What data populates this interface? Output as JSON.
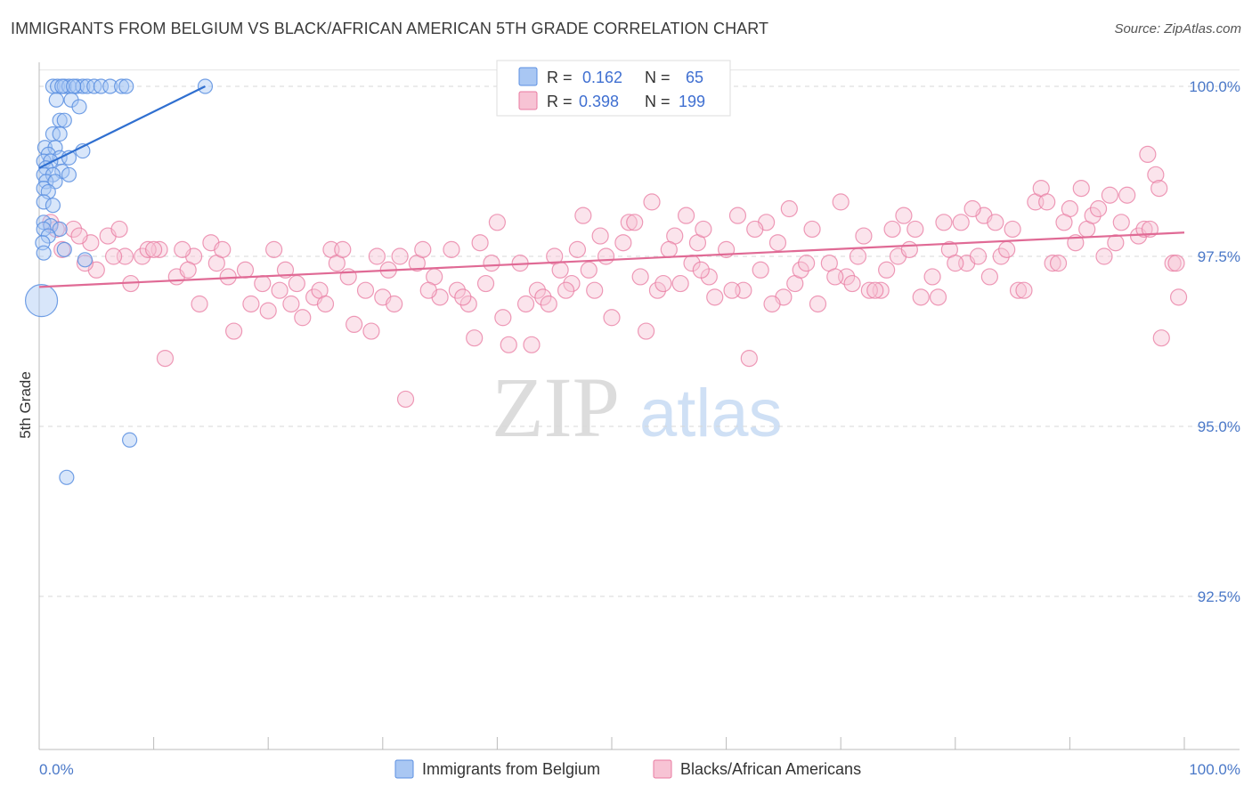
{
  "title": "IMMIGRANTS FROM BELGIUM VS BLACK/AFRICAN AMERICAN 5TH GRADE CORRELATION CHART",
  "source": "Source: ZipAtlas.com",
  "watermark": {
    "zip": "ZIP",
    "atlas": "atlas"
  },
  "colors": {
    "blue": "#5b8fe0",
    "blue_fill": "#a9c7f3",
    "blue_line": "#2f6fd0",
    "pink": "#e87aa0",
    "pink_fill": "#f7c3d4",
    "pink_line": "#e06a95",
    "grid": "#d7d7d7",
    "axis_text": "#4a78c8"
  },
  "legend_box": {
    "rows": [
      {
        "r_label": "R =",
        "r_value": "0.162",
        "n_label": "N =",
        "n_value": "65"
      },
      {
        "r_label": "R =",
        "r_value": "0.398",
        "n_label": "N =",
        "n_value": "199"
      }
    ]
  },
  "chart_data": {
    "type": "scatter",
    "title": "IMMIGRANTS FROM BELGIUM VS BLACK/AFRICAN AMERICAN 5TH GRADE CORRELATION CHART",
    "xlabel": "",
    "ylabel": "5th Grade",
    "x_tick_labels": [
      "0.0%",
      "100.0%"
    ],
    "y_tick_labels": [
      "100.0%",
      "97.5%",
      "95.0%",
      "92.5%"
    ],
    "y_ticks": [
      100.0,
      97.5,
      95.0,
      92.5
    ],
    "xlim": [
      0,
      100
    ],
    "ylim": [
      90.0,
      100.4
    ],
    "legend_position": "bottom-center",
    "series": [
      {
        "name": "Immigrants from Belgium",
        "color": "#5b8fe0",
        "r": 0.162,
        "n": 65,
        "trend": {
          "x": [
            0,
            14.5
          ],
          "y": [
            98.8,
            100.0
          ]
        },
        "points": [
          [
            1.2,
            100.0
          ],
          [
            1.6,
            100.0
          ],
          [
            2.2,
            100.0
          ],
          [
            2.6,
            100.0
          ],
          [
            3.3,
            100.0
          ],
          [
            3.8,
            100.0
          ],
          [
            4.2,
            100.0
          ],
          [
            4.8,
            100.0
          ],
          [
            5.4,
            100.0
          ],
          [
            6.2,
            100.0
          ],
          [
            7.2,
            100.0
          ],
          [
            7.6,
            100.0
          ],
          [
            14.5,
            100.0
          ],
          [
            2.0,
            100.0
          ],
          [
            3.0,
            100.0
          ],
          [
            1.5,
            99.8
          ],
          [
            2.8,
            99.8
          ],
          [
            3.5,
            99.7
          ],
          [
            1.8,
            99.5
          ],
          [
            2.2,
            99.5
          ],
          [
            1.2,
            99.3
          ],
          [
            1.8,
            99.3
          ],
          [
            0.5,
            99.1
          ],
          [
            1.4,
            99.1
          ],
          [
            0.8,
            99.0
          ],
          [
            3.8,
            99.05
          ],
          [
            1.8,
            98.95
          ],
          [
            2.6,
            98.95
          ],
          [
            0.4,
            98.9
          ],
          [
            1.0,
            98.9
          ],
          [
            0.6,
            98.8
          ],
          [
            2.0,
            98.75
          ],
          [
            0.4,
            98.7
          ],
          [
            1.2,
            98.7
          ],
          [
            2.6,
            98.7
          ],
          [
            0.6,
            98.6
          ],
          [
            1.4,
            98.6
          ],
          [
            0.4,
            98.5
          ],
          [
            0.8,
            98.45
          ],
          [
            0.4,
            98.3
          ],
          [
            1.2,
            98.25
          ],
          [
            0.4,
            98.0
          ],
          [
            1.0,
            97.95
          ],
          [
            1.8,
            97.9
          ],
          [
            0.4,
            97.9
          ],
          [
            0.8,
            97.8
          ],
          [
            0.3,
            97.7
          ],
          [
            2.2,
            97.6
          ],
          [
            0.4,
            97.55
          ],
          [
            4.0,
            97.45
          ],
          [
            0.2,
            96.85
          ],
          [
            7.9,
            94.8
          ],
          [
            2.4,
            94.25
          ]
        ]
      },
      {
        "name": "Blacks/African Americans",
        "color": "#e87aa0",
        "r": 0.398,
        "n": 199,
        "trend": {
          "x": [
            0,
            100
          ],
          "y": [
            97.05,
            97.85
          ]
        },
        "points": [
          [
            1.5,
            97.9
          ],
          [
            3.0,
            97.9
          ],
          [
            4.5,
            97.7
          ],
          [
            6.0,
            97.8
          ],
          [
            7.5,
            97.5
          ],
          [
            9.0,
            97.5
          ],
          [
            10.5,
            97.6
          ],
          [
            12.0,
            97.2
          ],
          [
            13.5,
            97.5
          ],
          [
            15.0,
            97.7
          ],
          [
            16.5,
            97.2
          ],
          [
            18.0,
            97.3
          ],
          [
            19.5,
            97.1
          ],
          [
            21.0,
            97.0
          ],
          [
            22.5,
            97.1
          ],
          [
            24.0,
            96.9
          ],
          [
            25.5,
            97.6
          ],
          [
            27.0,
            97.2
          ],
          [
            28.5,
            97.0
          ],
          [
            30.0,
            96.9
          ],
          [
            31.5,
            97.5
          ],
          [
            33.0,
            97.4
          ],
          [
            34.5,
            97.2
          ],
          [
            36.0,
            97.6
          ],
          [
            37.5,
            96.8
          ],
          [
            39.0,
            97.1
          ],
          [
            40.5,
            96.6
          ],
          [
            42.0,
            97.4
          ],
          [
            43.5,
            97.0
          ],
          [
            45.0,
            97.5
          ],
          [
            46.5,
            97.1
          ],
          [
            48.0,
            97.3
          ],
          [
            49.5,
            97.5
          ],
          [
            51.0,
            97.7
          ],
          [
            52.5,
            97.2
          ],
          [
            54.0,
            97.0
          ],
          [
            55.5,
            97.8
          ],
          [
            57.0,
            97.4
          ],
          [
            58.5,
            97.2
          ],
          [
            60.0,
            97.6
          ],
          [
            61.5,
            97.0
          ],
          [
            63.0,
            97.3
          ],
          [
            64.5,
            97.7
          ],
          [
            66.0,
            97.1
          ],
          [
            67.5,
            97.9
          ],
          [
            69.0,
            97.4
          ],
          [
            70.5,
            97.2
          ],
          [
            72.0,
            97.8
          ],
          [
            73.5,
            97.0
          ],
          [
            75.0,
            97.5
          ],
          [
            76.5,
            97.9
          ],
          [
            78.0,
            97.2
          ],
          [
            79.5,
            97.6
          ],
          [
            81.0,
            97.4
          ],
          [
            82.5,
            98.1
          ],
          [
            84.0,
            97.5
          ],
          [
            85.5,
            97.0
          ],
          [
            87.0,
            98.3
          ],
          [
            88.5,
            97.4
          ],
          [
            90.0,
            98.2
          ],
          [
            91.5,
            97.9
          ],
          [
            93.0,
            97.5
          ],
          [
            94.5,
            98.0
          ],
          [
            96.0,
            97.8
          ],
          [
            97.5,
            98.7
          ],
          [
            99.0,
            97.4
          ],
          [
            2.0,
            97.6
          ],
          [
            5.0,
            97.3
          ],
          [
            8.0,
            97.1
          ],
          [
            11.0,
            96.0
          ],
          [
            14.0,
            96.8
          ],
          [
            17.0,
            96.4
          ],
          [
            20.0,
            96.7
          ],
          [
            23.0,
            96.6
          ],
          [
            26.0,
            97.4
          ],
          [
            29.0,
            96.4
          ],
          [
            32.0,
            95.4
          ],
          [
            35.0,
            96.9
          ],
          [
            38.0,
            96.3
          ],
          [
            41.0,
            96.2
          ],
          [
            44.0,
            96.9
          ],
          [
            47.0,
            97.6
          ],
          [
            50.0,
            96.6
          ],
          [
            53.0,
            96.4
          ],
          [
            56.0,
            97.1
          ],
          [
            59.0,
            96.9
          ],
          [
            62.0,
            96.0
          ],
          [
            65.0,
            96.9
          ],
          [
            68.0,
            96.8
          ],
          [
            71.0,
            97.1
          ],
          [
            74.0,
            97.3
          ],
          [
            77.0,
            96.9
          ],
          [
            80.0,
            97.4
          ],
          [
            83.0,
            97.2
          ],
          [
            86.0,
            97.0
          ],
          [
            89.0,
            97.4
          ],
          [
            92.0,
            98.1
          ],
          [
            95.0,
            98.4
          ],
          [
            98.0,
            96.3
          ],
          [
            99.5,
            96.9
          ],
          [
            12.5,
            97.6
          ],
          [
            18.5,
            96.8
          ],
          [
            24.5,
            97.0
          ],
          [
            30.5,
            97.3
          ],
          [
            36.5,
            97.0
          ],
          [
            42.5,
            96.8
          ],
          [
            48.5,
            97.0
          ],
          [
            54.5,
            97.1
          ],
          [
            60.5,
            97.0
          ],
          [
            66.5,
            97.3
          ],
          [
            72.5,
            97.0
          ],
          [
            78.5,
            96.9
          ],
          [
            84.5,
            97.6
          ],
          [
            90.5,
            97.7
          ],
          [
            96.5,
            97.9
          ],
          [
            21.5,
            97.3
          ],
          [
            27.5,
            96.5
          ],
          [
            33.5,
            97.6
          ],
          [
            39.5,
            97.4
          ],
          [
            45.5,
            97.3
          ],
          [
            51.5,
            98.0
          ],
          [
            57.5,
            97.7
          ],
          [
            63.5,
            98.0
          ],
          [
            69.5,
            97.2
          ],
          [
            75.5,
            98.1
          ],
          [
            81.5,
            98.2
          ],
          [
            87.5,
            98.5
          ],
          [
            93.5,
            98.4
          ],
          [
            6.5,
            97.5
          ],
          [
            9.5,
            97.6
          ],
          [
            15.5,
            97.4
          ],
          [
            25.0,
            96.8
          ],
          [
            34.0,
            97.0
          ],
          [
            43.0,
            96.2
          ],
          [
            52.0,
            98.0
          ],
          [
            61.0,
            98.1
          ],
          [
            70.0,
            98.3
          ],
          [
            79.0,
            98.0
          ],
          [
            88.0,
            98.3
          ],
          [
            97.0,
            97.9
          ],
          [
            10.0,
            97.6
          ],
          [
            20.5,
            97.6
          ],
          [
            29.5,
            97.5
          ],
          [
            38.5,
            97.7
          ],
          [
            47.5,
            98.1
          ],
          [
            56.5,
            98.1
          ],
          [
            65.5,
            98.2
          ],
          [
            74.5,
            97.9
          ],
          [
            83.5,
            98.0
          ],
          [
            92.5,
            98.2
          ],
          [
            4.0,
            97.4
          ],
          [
            13.0,
            97.3
          ],
          [
            22.0,
            96.8
          ],
          [
            31.0,
            96.8
          ],
          [
            40.0,
            98.0
          ],
          [
            49.0,
            97.8
          ],
          [
            58.0,
            97.9
          ],
          [
            67.0,
            97.4
          ],
          [
            76.0,
            97.6
          ],
          [
            85.0,
            97.9
          ],
          [
            94.0,
            97.7
          ],
          [
            1.0,
            98.0
          ],
          [
            3.5,
            97.8
          ],
          [
            7.0,
            97.9
          ],
          [
            16.0,
            97.6
          ],
          [
            26.5,
            97.6
          ],
          [
            37.0,
            96.9
          ],
          [
            46.0,
            97.0
          ],
          [
            55.0,
            97.6
          ],
          [
            64.0,
            96.8
          ],
          [
            73.0,
            97.0
          ],
          [
            82.0,
            97.5
          ],
          [
            91.0,
            98.5
          ],
          [
            97.8,
            98.5
          ],
          [
            99.3,
            97.4
          ],
          [
            44.5,
            96.8
          ],
          [
            53.5,
            98.3
          ],
          [
            62.5,
            97.9
          ],
          [
            71.5,
            97.5
          ],
          [
            80.5,
            98.0
          ],
          [
            89.5,
            98.0
          ],
          [
            96.8,
            99.0
          ],
          [
            57.8,
            97.3
          ]
        ]
      }
    ]
  }
}
